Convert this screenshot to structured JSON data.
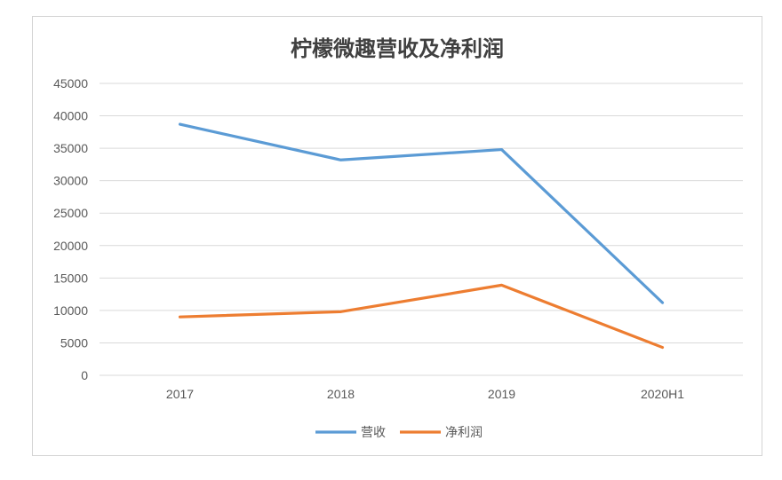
{
  "chart_data": {
    "type": "line",
    "title": "柠檬微趣营收及净利润",
    "categories": [
      "2017",
      "2018",
      "2019",
      "2020H1"
    ],
    "series": [
      {
        "name": "营收",
        "values": [
          38700,
          33200,
          34800,
          11200
        ],
        "color": "#5b9bd5"
      },
      {
        "name": "净利润",
        "values": [
          9000,
          9800,
          13900,
          4300
        ],
        "color": "#ed7d31"
      }
    ],
    "ylim": [
      0,
      45000
    ],
    "yticks": [
      "0",
      "5000",
      "10000",
      "15000",
      "20000",
      "25000",
      "30000",
      "35000",
      "40000",
      "45000"
    ],
    "grid": true,
    "legend": "bottom"
  }
}
